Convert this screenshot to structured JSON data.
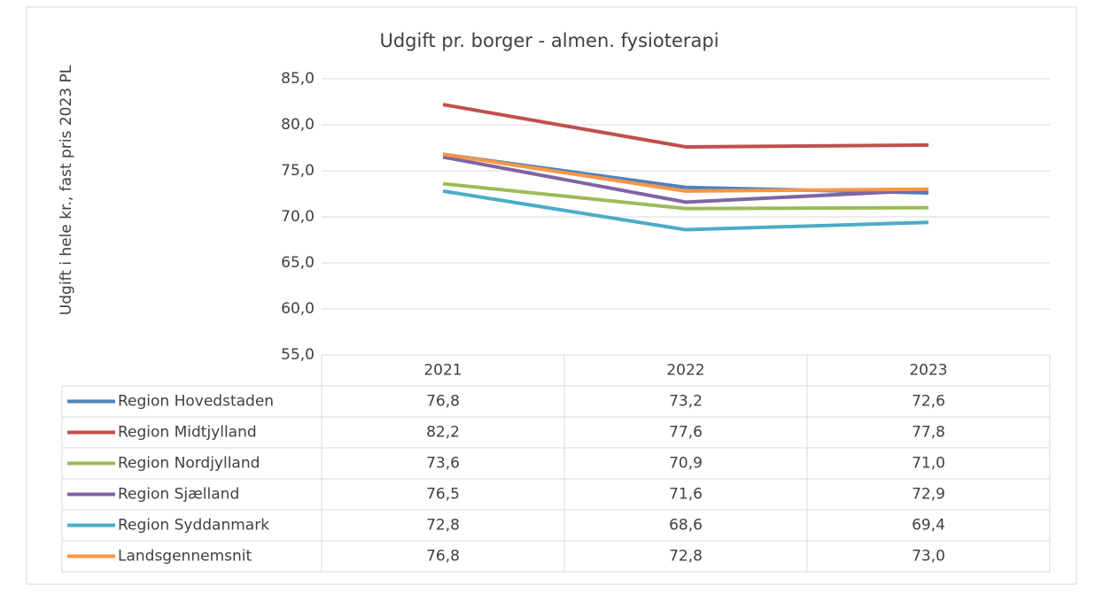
{
  "chart_data": {
    "type": "line",
    "title": "Udgift pr. borger - almen. fysioterapi",
    "y_label": "Udgift i hele kr., fast pris 2023  PL",
    "categories": [
      "2021",
      "2022",
      "2023"
    ],
    "series": [
      {
        "name": "Region Hovedstaden",
        "color": "#4f81bd",
        "values": [
          76.8,
          73.2,
          72.6
        ],
        "value_labels": [
          "76,8",
          "73,2",
          "72,6"
        ]
      },
      {
        "name": "Region Midtjylland",
        "color": "#c0504d",
        "values": [
          82.2,
          77.6,
          77.8
        ],
        "value_labels": [
          "82,2",
          "77,6",
          "77,8"
        ]
      },
      {
        "name": "Region Nordjylland",
        "color": "#9bbb59",
        "values": [
          73.6,
          70.9,
          71.0
        ],
        "value_labels": [
          "73,6",
          "70,9",
          "71,0"
        ]
      },
      {
        "name": "Region Sjælland",
        "color": "#8064a2",
        "values": [
          76.5,
          71.6,
          72.9
        ],
        "value_labels": [
          "76,5",
          "71,6",
          "72,9"
        ]
      },
      {
        "name": "Region Syddanmark",
        "color": "#4bacc6",
        "values": [
          72.8,
          68.6,
          69.4
        ],
        "value_labels": [
          "72,8",
          "68,6",
          "69,4"
        ]
      },
      {
        "name": "Landsgennemsnit",
        "color": "#f79646",
        "values": [
          76.8,
          72.8,
          73.0
        ],
        "value_labels": [
          "76,8",
          "72,8",
          "73,0"
        ]
      }
    ],
    "ylim": [
      55,
      85
    ],
    "yticks": [
      {
        "value": 55,
        "label": "55,0"
      },
      {
        "value": 60,
        "label": "60,0"
      },
      {
        "value": 65,
        "label": "65,0"
      },
      {
        "value": 70,
        "label": "70,0"
      },
      {
        "value": 75,
        "label": "75,0"
      },
      {
        "value": 80,
        "label": "80,0"
      },
      {
        "value": 85,
        "label": "85,0"
      }
    ],
    "grid": true
  }
}
